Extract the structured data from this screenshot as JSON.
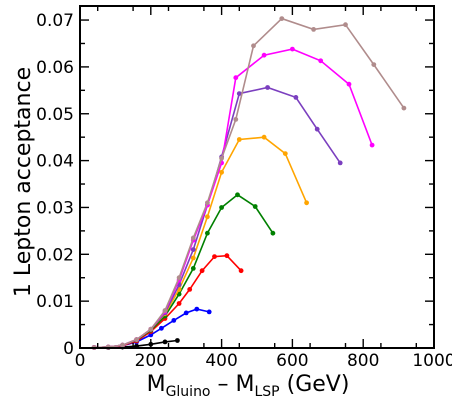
{
  "chart_data": {
    "type": "line",
    "title": "",
    "xlabel": {
      "main": "M",
      "sub1": "Gluino",
      "mid": " – M",
      "sub2": "LSP",
      "unit": " (GeV)"
    },
    "ylabel": "1 Lepton  acceptance",
    "xlim": [
      0,
      1000
    ],
    "ylim": [
      0,
      0.073
    ],
    "xticks": [
      0,
      200,
      400,
      600,
      800,
      1000
    ],
    "xtick_labels": [
      "0",
      "200",
      "400",
      "600",
      "800",
      "1000"
    ],
    "yticks": [
      0,
      0.01,
      0.02,
      0.03,
      0.04,
      0.05,
      0.06,
      0.07
    ],
    "ytick_labels": [
      "0",
      "0.01",
      "0.02",
      "0.03",
      "0.04",
      "0.05",
      "0.06",
      "0.07"
    ],
    "grid": false,
    "series": [
      {
        "color": "#000000",
        "x": [
          40,
          80,
          120,
          160,
          200,
          240,
          275
        ],
        "y": [
          0.0001,
          0.0001,
          0.0002,
          0.0004,
          0.0008,
          0.0013,
          0.0016
        ]
      },
      {
        "color": "#0000ff",
        "x": [
          40,
          80,
          120,
          160,
          200,
          230,
          265,
          300,
          330,
          365
        ],
        "y": [
          0.0001,
          0.0002,
          0.0005,
          0.0013,
          0.0028,
          0.0042,
          0.0059,
          0.0075,
          0.0083,
          0.0077
        ]
      },
      {
        "color": "#ff0000",
        "x": [
          40,
          80,
          120,
          160,
          200,
          240,
          280,
          310,
          345,
          380,
          415,
          455
        ],
        "y": [
          0.0001,
          0.0002,
          0.0005,
          0.0015,
          0.0035,
          0.0063,
          0.0095,
          0.0125,
          0.0165,
          0.0195,
          0.0197,
          0.0165
        ]
      },
      {
        "color": "#008000",
        "x": [
          40,
          80,
          120,
          160,
          200,
          240,
          280,
          320,
          360,
          400,
          445,
          495,
          545
        ],
        "y": [
          0.0001,
          0.0002,
          0.0006,
          0.0017,
          0.0038,
          0.0068,
          0.0115,
          0.017,
          0.0245,
          0.03,
          0.0327,
          0.0302,
          0.0245
        ]
      },
      {
        "color": "#ffa500",
        "x": [
          40,
          80,
          120,
          160,
          200,
          240,
          280,
          320,
          360,
          400,
          450,
          520,
          580,
          640
        ],
        "y": [
          0.0001,
          0.0002,
          0.0006,
          0.0018,
          0.004,
          0.0073,
          0.0125,
          0.0192,
          0.028,
          0.0375,
          0.0445,
          0.045,
          0.0415,
          0.031
        ]
      },
      {
        "color": "#7b3fbf",
        "x": [
          40,
          80,
          120,
          160,
          200,
          240,
          280,
          320,
          360,
          400,
          450,
          530,
          610,
          670,
          735
        ],
        "y": [
          0.0001,
          0.0002,
          0.0006,
          0.0018,
          0.004,
          0.0075,
          0.0135,
          0.021,
          0.0305,
          0.0408,
          0.0543,
          0.0556,
          0.0535,
          0.0467,
          0.0395
        ]
      },
      {
        "color": "#ff00ff",
        "x": [
          40,
          80,
          120,
          160,
          200,
          240,
          280,
          320,
          360,
          400,
          440,
          520,
          600,
          680,
          760,
          825
        ],
        "y": [
          0.0001,
          0.0002,
          0.0006,
          0.0018,
          0.004,
          0.0078,
          0.0145,
          0.023,
          0.0305,
          0.0395,
          0.0577,
          0.0625,
          0.0638,
          0.0613,
          0.0563,
          0.0433
        ]
      },
      {
        "color": "#b08c8c",
        "x": [
          40,
          80,
          120,
          160,
          200,
          240,
          280,
          320,
          360,
          400,
          440,
          490,
          570,
          660,
          750,
          830,
          915
        ],
        "y": [
          0.0001,
          0.0002,
          0.0006,
          0.0018,
          0.004,
          0.008,
          0.015,
          0.0235,
          0.031,
          0.0405,
          0.0488,
          0.0645,
          0.0703,
          0.068,
          0.069,
          0.0605,
          0.0512
        ]
      }
    ]
  }
}
